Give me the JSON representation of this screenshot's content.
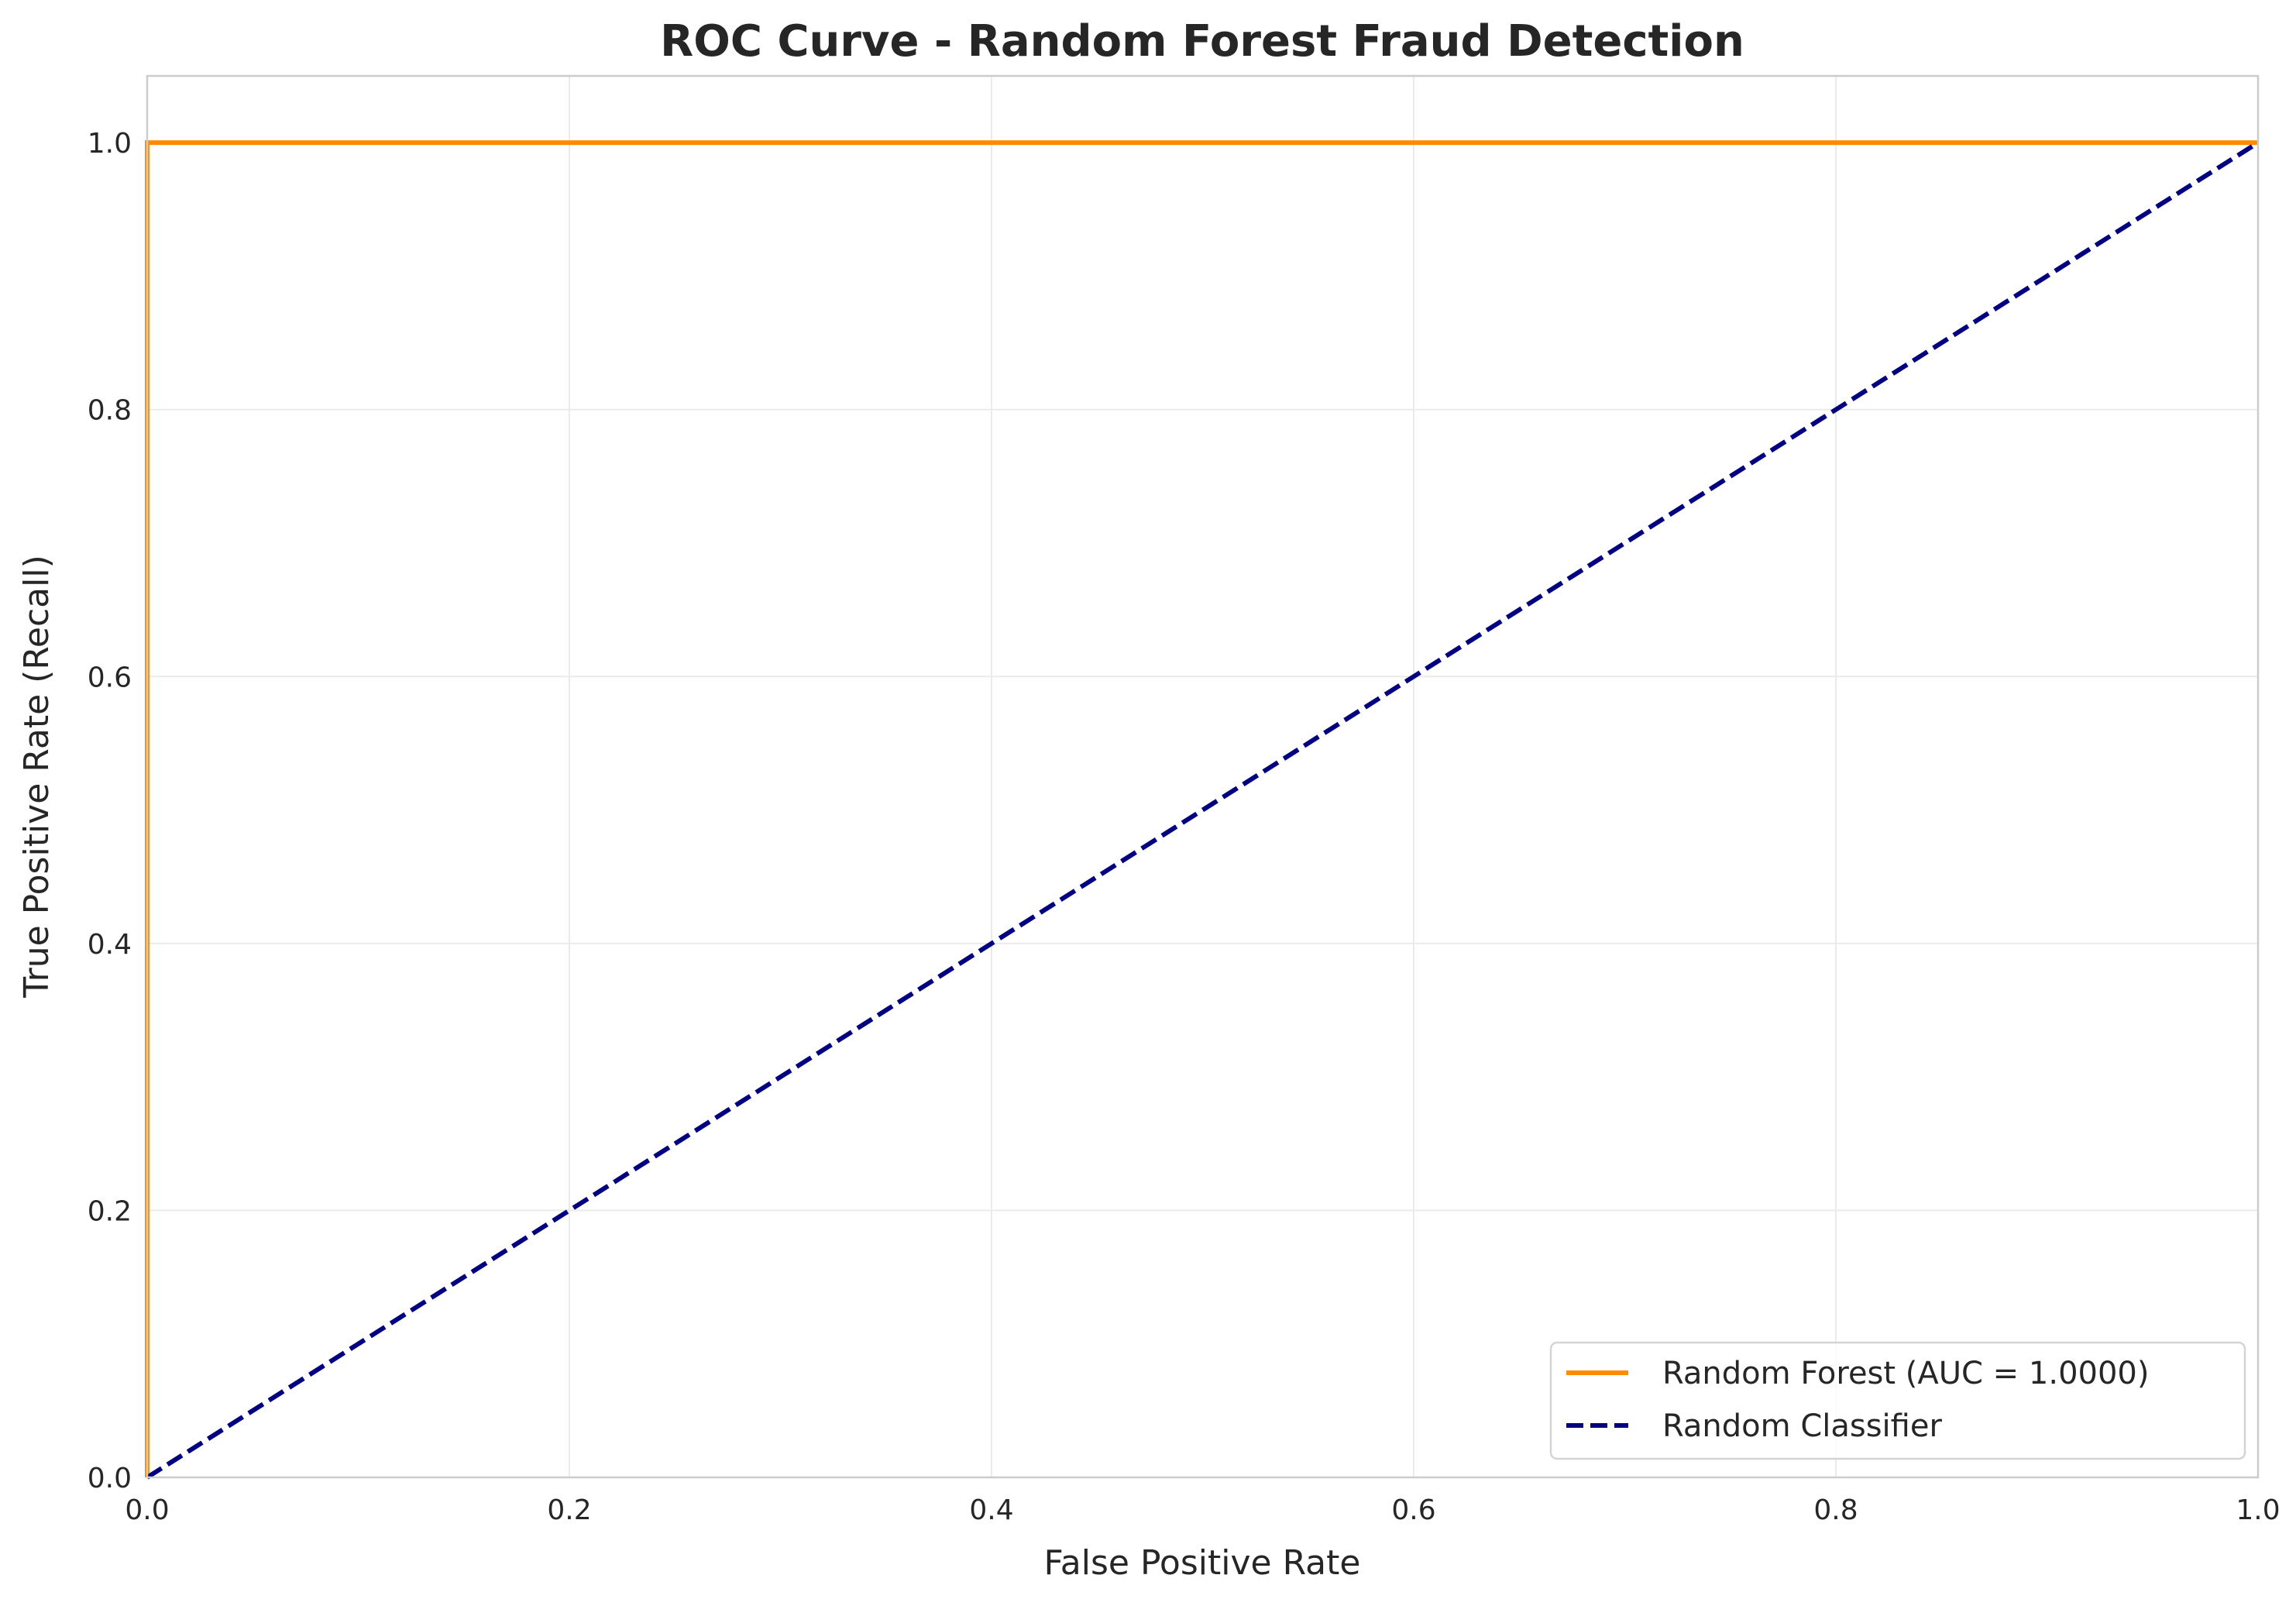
{
  "chart_data": {
    "type": "line",
    "title": "ROC Curve - Random Forest Fraud Detection",
    "xlabel": "False Positive Rate",
    "ylabel": "True Positive Rate (Recall)",
    "xlim": [
      0.0,
      1.0
    ],
    "ylim": [
      0.0,
      1.05
    ],
    "xticks": [
      0.0,
      0.2,
      0.4,
      0.6,
      0.8,
      1.0
    ],
    "xtick_labels": [
      "0.0",
      "0.2",
      "0.4",
      "0.6",
      "0.8",
      "1.0"
    ],
    "yticks": [
      0.0,
      0.2,
      0.4,
      0.6,
      0.8,
      1.0
    ],
    "ytick_labels": [
      "0.0",
      "0.2",
      "0.4",
      "0.6",
      "0.8",
      "1.0"
    ],
    "grid": true,
    "legend_position": "lower-right",
    "series": [
      {
        "name": "Random Forest (AUC = 1.0000)",
        "color": "#ff8c00",
        "style": "solid",
        "x": [
          0.0,
          0.0,
          1.0
        ],
        "y": [
          0.0,
          1.0,
          1.0
        ]
      },
      {
        "name": "Random Classifier",
        "color": "#000080",
        "style": "dashed",
        "x": [
          0.0,
          1.0
        ],
        "y": [
          0.0,
          1.0
        ]
      }
    ]
  }
}
